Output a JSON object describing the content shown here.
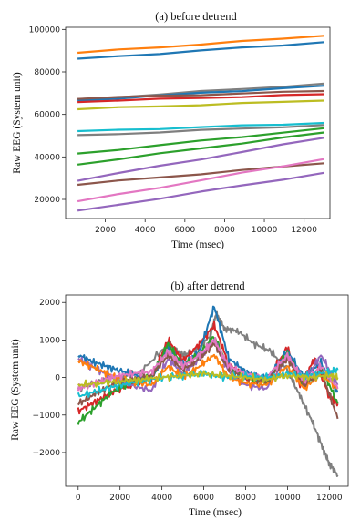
{
  "chart_data": [
    {
      "type": "line",
      "title": "(a) before detrend",
      "xlabel": "Time (msec)",
      "ylabel": "Raw EEG (System unit)",
      "xlim": [
        0,
        13300
      ],
      "ylim": [
        11000,
        101000
      ],
      "xticks": [
        2000,
        4000,
        6000,
        8000,
        10000,
        12000
      ],
      "yticks": [
        20000,
        40000,
        60000,
        80000,
        100000
      ],
      "xtick_labels": [
        "2000",
        "4000",
        "6000",
        "8000",
        "10000",
        "12000"
      ],
      "ytick_labels": [
        "20000",
        "40000",
        "60000",
        "80000",
        "100000"
      ],
      "grid": false,
      "series": [
        {
          "color": "#ff7f0e",
          "x": [
            600,
            13000
          ],
          "y": [
            89000,
            97000
          ]
        },
        {
          "color": "#1f77b4",
          "x": [
            600,
            13000
          ],
          "y": [
            86000,
            94000
          ]
        },
        {
          "color": "#7f7f7f",
          "x": [
            600,
            13000
          ],
          "y": [
            67000,
            74500
          ]
        },
        {
          "color": "#1f77b4",
          "x": [
            600,
            13000
          ],
          "y": [
            66500,
            73500
          ]
        },
        {
          "color": "#d62728",
          "x": [
            600,
            13000
          ],
          "y": [
            66000,
            69500
          ]
        },
        {
          "color": "#8c564b",
          "x": [
            600,
            13000
          ],
          "y": [
            67500,
            71000
          ]
        },
        {
          "color": "#bcbd22",
          "x": [
            600,
            13000
          ],
          "y": [
            62500,
            66500
          ]
        },
        {
          "color": "#17becf",
          "x": [
            600,
            13000
          ],
          "y": [
            52000,
            56000
          ]
        },
        {
          "color": "#7f7f7f",
          "x": [
            600,
            13000
          ],
          "y": [
            50000,
            55000
          ]
        },
        {
          "color": "#2ca02c",
          "x": [
            600,
            13000
          ],
          "y": [
            41500,
            53500
          ]
        },
        {
          "color": "#2ca02c",
          "x": [
            600,
            13000
          ],
          "y": [
            36500,
            51500
          ]
        },
        {
          "color": "#9467bd",
          "x": [
            600,
            13000
          ],
          "y": [
            29000,
            49000
          ]
        },
        {
          "color": "#8c564b",
          "x": [
            600,
            13000
          ],
          "y": [
            27000,
            37000
          ]
        },
        {
          "color": "#e377c2",
          "x": [
            600,
            13000
          ],
          "y": [
            19000,
            39000
          ]
        },
        {
          "color": "#9467bd",
          "x": [
            600,
            13000
          ],
          "y": [
            14500,
            32500
          ]
        }
      ]
    },
    {
      "type": "line",
      "title": "(b) after detrend",
      "xlabel": "Time (msec)",
      "ylabel": "Raw EEG (System unit)",
      "xlim": [
        -600,
        12900
      ],
      "ylim": [
        -2900,
        2200
      ],
      "xticks": [
        0,
        2000,
        4000,
        6000,
        8000,
        10000,
        12000
      ],
      "yticks": [
        -2000,
        -1000,
        0,
        1000,
        2000
      ],
      "xtick_labels": [
        "0",
        "2000",
        "4000",
        "6000",
        "8000",
        "10000",
        "12000"
      ],
      "ytick_labels": [
        "−2000",
        "−1000",
        "0",
        "1000",
        "2000"
      ],
      "grid": false,
      "series": [
        {
          "color": "#7f7f7f",
          "x": [
            0,
            1000,
            2000,
            3000,
            4300,
            5000,
            5600,
            6300,
            6600,
            7000,
            7600,
            8400,
            9200,
            10000,
            10600,
            11200,
            11700,
            12000,
            12400
          ],
          "y": [
            -300,
            -100,
            0,
            150,
            900,
            600,
            700,
            1100,
            1700,
            1300,
            1250,
            900,
            700,
            200,
            -500,
            -1200,
            -1900,
            -2300,
            -2600
          ]
        },
        {
          "color": "#d62728",
          "x": [
            0,
            800,
            1600,
            2500,
            3500,
            4300,
            5000,
            5800,
            6500,
            7200,
            8000,
            9000,
            10000,
            10600,
            11300,
            12000,
            12400
          ],
          "y": [
            -900,
            -650,
            -400,
            -200,
            0,
            1000,
            450,
            900,
            1400,
            350,
            0,
            -100,
            800,
            -200,
            500,
            -500,
            -700
          ]
        },
        {
          "color": "#1f77b4",
          "x": [
            0,
            800,
            1600,
            2500,
            3500,
            4300,
            5000,
            5800,
            6500,
            7200,
            8000,
            9000,
            10000,
            10800,
            11600,
            12400
          ],
          "y": [
            600,
            400,
            250,
            100,
            -50,
            800,
            350,
            700,
            1900,
            500,
            150,
            -50,
            700,
            0,
            400,
            -400
          ]
        },
        {
          "color": "#2ca02c",
          "x": [
            0,
            800,
            1600,
            2500,
            3500,
            4300,
            5000,
            5800,
            6500,
            7200,
            8000,
            9000,
            10000,
            10800,
            11600,
            12400
          ],
          "y": [
            -1200,
            -800,
            -400,
            -150,
            0,
            900,
            300,
            650,
            1100,
            250,
            0,
            -150,
            650,
            -250,
            300,
            -700
          ]
        },
        {
          "color": "#9467bd",
          "x": [
            0,
            800,
            1600,
            2500,
            3500,
            4300,
            5000,
            5800,
            6500,
            7200,
            8000,
            9000,
            10000,
            10800,
            11600,
            12400
          ],
          "y": [
            500,
            250,
            0,
            -200,
            -350,
            500,
            100,
            500,
            1000,
            150,
            -200,
            -300,
            550,
            -100,
            600,
            -200
          ]
        },
        {
          "color": "#ff7f0e",
          "x": [
            0,
            800,
            1600,
            2500,
            3500,
            4300,
            5000,
            5800,
            6500,
            7200,
            8000,
            9000,
            10000,
            10800,
            11600,
            12400
          ],
          "y": [
            450,
            250,
            50,
            -100,
            -200,
            300,
            0,
            300,
            600,
            0,
            -150,
            -200,
            300,
            -300,
            100,
            -300
          ]
        },
        {
          "color": "#8c564b",
          "x": [
            0,
            800,
            1600,
            2500,
            3500,
            4300,
            5000,
            5800,
            6500,
            7200,
            8000,
            9000,
            10000,
            10800,
            11600,
            12400
          ],
          "y": [
            -700,
            -450,
            -200,
            -50,
            50,
            600,
            200,
            500,
            900,
            200,
            0,
            -100,
            500,
            -200,
            200,
            -1100
          ]
        },
        {
          "color": "#e377c2",
          "x": [
            0,
            800,
            1600,
            2500,
            3500,
            4300,
            5000,
            5800,
            6500,
            7200,
            8000,
            9000,
            10000,
            10800,
            11600,
            12400
          ],
          "y": [
            -300,
            -150,
            0,
            100,
            150,
            700,
            300,
            600,
            1000,
            300,
            100,
            0,
            600,
            -100,
            300,
            -300
          ]
        },
        {
          "color": "#17becf",
          "x": [
            0,
            1000,
            2000,
            3000,
            4000,
            5000,
            6000,
            7000,
            8000,
            9000,
            10000,
            11000,
            12000,
            12400
          ],
          "y": [
            -500,
            -350,
            -200,
            -100,
            0,
            50,
            100,
            0,
            50,
            0,
            100,
            50,
            150,
            200
          ]
        },
        {
          "color": "#bcbd22",
          "x": [
            0,
            1000,
            2000,
            3000,
            4000,
            5000,
            6000,
            7000,
            8000,
            9000,
            10000,
            11000,
            12000,
            12400
          ],
          "y": [
            -200,
            -150,
            -100,
            -50,
            0,
            50,
            100,
            50,
            0,
            -50,
            50,
            0,
            50,
            0
          ]
        }
      ]
    }
  ]
}
